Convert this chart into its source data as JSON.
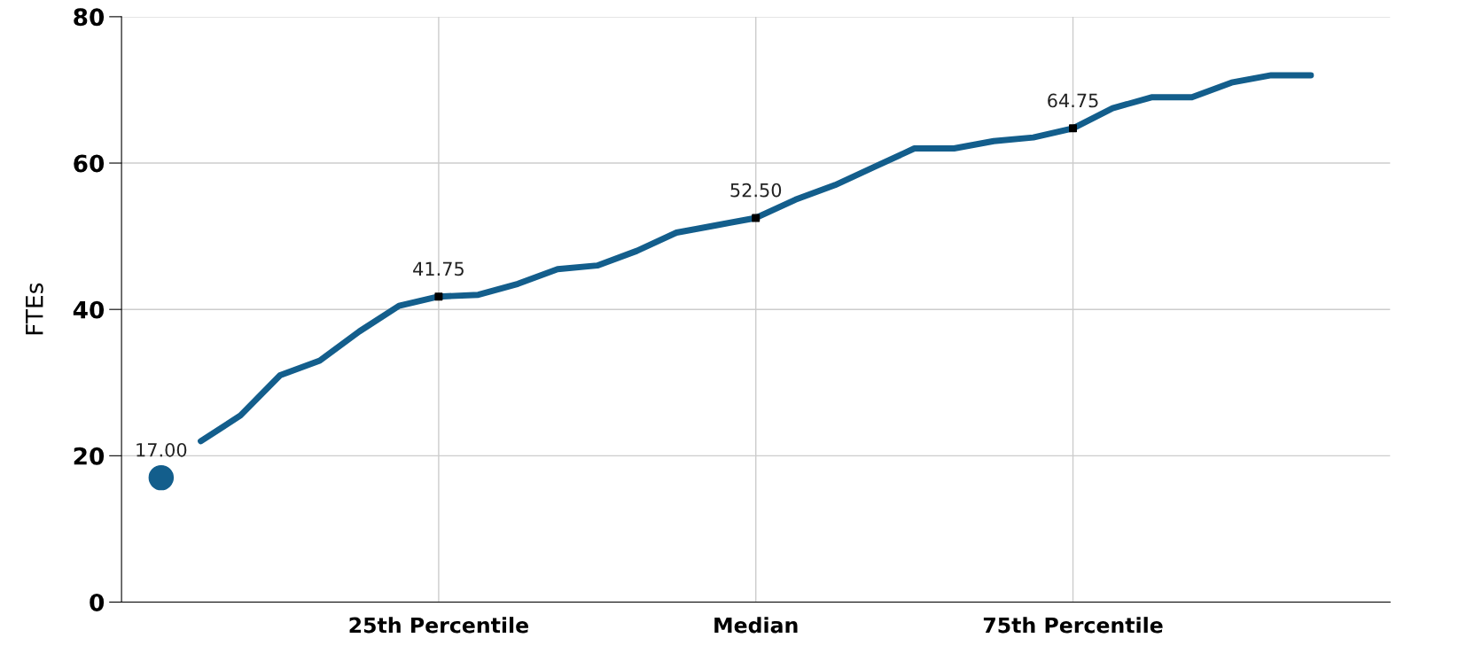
{
  "chart_data": {
    "type": "line",
    "ylabel": "FTEs",
    "categories": [
      null,
      null,
      null,
      null,
      null,
      null,
      null,
      null,
      "25th Percentile",
      null,
      null,
      null,
      null,
      null,
      null,
      null,
      "Median",
      null,
      null,
      null,
      null,
      null,
      null,
      null,
      "75th Percentile",
      null,
      null,
      null,
      null,
      null,
      null,
      null,
      null
    ],
    "ylim": [
      0,
      80
    ],
    "yticks": [
      0,
      20,
      40,
      60,
      80
    ],
    "grid": true,
    "legend": false,
    "series": [
      {
        "color": "#135e8c",
        "marker": "none",
        "line_style": "solid",
        "values": [
          null,
          null,
          22,
          25.5,
          31,
          33,
          37,
          40.5,
          41.75,
          42,
          43.5,
          45.5,
          46,
          48,
          50.5,
          51.5,
          52.5,
          55,
          57,
          59.5,
          62,
          62,
          63,
          63.5,
          64.75,
          67.5,
          69,
          69,
          71,
          72,
          72,
          null,
          null
        ]
      },
      {
        "type": "scatter",
        "color": "#000000",
        "marker": "square",
        "values": [
          null,
          null,
          null,
          null,
          null,
          null,
          null,
          null,
          41.75,
          null,
          null,
          null,
          null,
          null,
          null,
          null,
          52.5,
          null,
          null,
          null,
          null,
          null,
          null,
          null,
          64.75,
          null,
          null,
          null,
          null,
          null,
          null,
          null,
          null
        ],
        "value_labels": [
          null,
          null,
          null,
          null,
          null,
          null,
          null,
          null,
          "41.75",
          null,
          null,
          null,
          null,
          null,
          null,
          null,
          "52.50",
          null,
          null,
          null,
          null,
          null,
          null,
          null,
          "64.75",
          null,
          null,
          null,
          null,
          null,
          null,
          null,
          null
        ]
      },
      {
        "type": "scatter",
        "color": "#135e8c",
        "marker": "circle",
        "values": [
          null,
          17,
          null,
          null,
          null,
          null,
          null,
          null,
          null,
          null,
          null,
          null,
          null,
          null,
          null,
          null,
          null,
          null,
          null,
          null,
          null,
          null,
          null,
          null,
          null,
          null,
          null,
          null,
          null,
          null,
          null,
          null,
          null
        ],
        "value_labels": [
          null,
          "17.00",
          null,
          null,
          null,
          null,
          null,
          null,
          null,
          null,
          null,
          null,
          null,
          null,
          null,
          null,
          null,
          null,
          null,
          null,
          null,
          null,
          null,
          null,
          null,
          null,
          null,
          null,
          null,
          null,
          null,
          null,
          null
        ]
      }
    ]
  }
}
